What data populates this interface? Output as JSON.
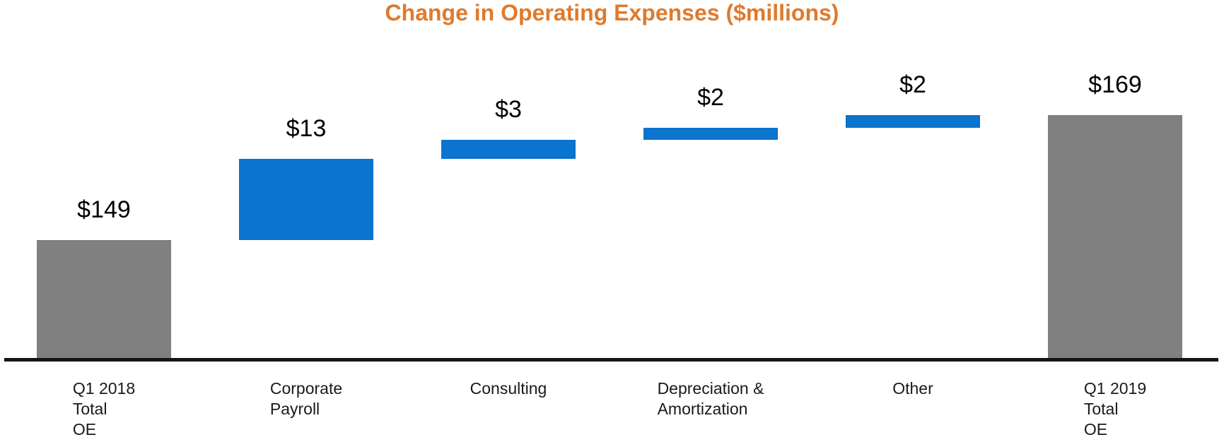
{
  "title": {
    "text": "Change in Operating Expenses ($millions)",
    "color": "#DF7A2D"
  },
  "chart_data": {
    "type": "bar",
    "subtype": "waterfall",
    "title": "Change in Operating Expenses ($millions)",
    "xlabel": "",
    "ylabel": "",
    "legend": false,
    "gridlines": false,
    "y_axis_tick_labels_visible": false,
    "ylim": [
      130,
      172
    ],
    "categories": [
      "Q1 2018 Total OE",
      "Corporate Payroll",
      "Consulting",
      "Depreciation & Amortization",
      "Other",
      "Q1 2019 Total OE"
    ],
    "bars": [
      {
        "category_lines": [
          "Q1 2018",
          "Total",
          "OE"
        ],
        "value_label": "$149",
        "value": 149,
        "kind": "total",
        "start": 130,
        "end": 149
      },
      {
        "category_lines": [
          "Corporate",
          "Payroll"
        ],
        "value_label": "$13",
        "value": 13,
        "kind": "increase",
        "start": 149,
        "end": 162
      },
      {
        "category_lines": [
          "Consulting"
        ],
        "value_label": "$3",
        "value": 3,
        "kind": "increase",
        "start": 162,
        "end": 165
      },
      {
        "category_lines": [
          "Depreciation &",
          "Amortization"
        ],
        "value_label": "$2",
        "value": 2,
        "kind": "increase",
        "start": 165,
        "end": 167
      },
      {
        "category_lines": [
          "Other"
        ],
        "value_label": "$2",
        "value": 2,
        "kind": "increase",
        "start": 167,
        "end": 169
      },
      {
        "category_lines": [
          "Q1 2019",
          "Total",
          "OE"
        ],
        "value_label": "$169",
        "value": 169,
        "kind": "total",
        "start": 130,
        "end": 169
      }
    ]
  },
  "colors": {
    "total_bar": "#808080",
    "increase_bar": "#0A74CE",
    "axis_line": "#141414",
    "value_label_text": "#000000",
    "category_label_text": "#1A1A1A",
    "background": "#FFFFFF"
  }
}
